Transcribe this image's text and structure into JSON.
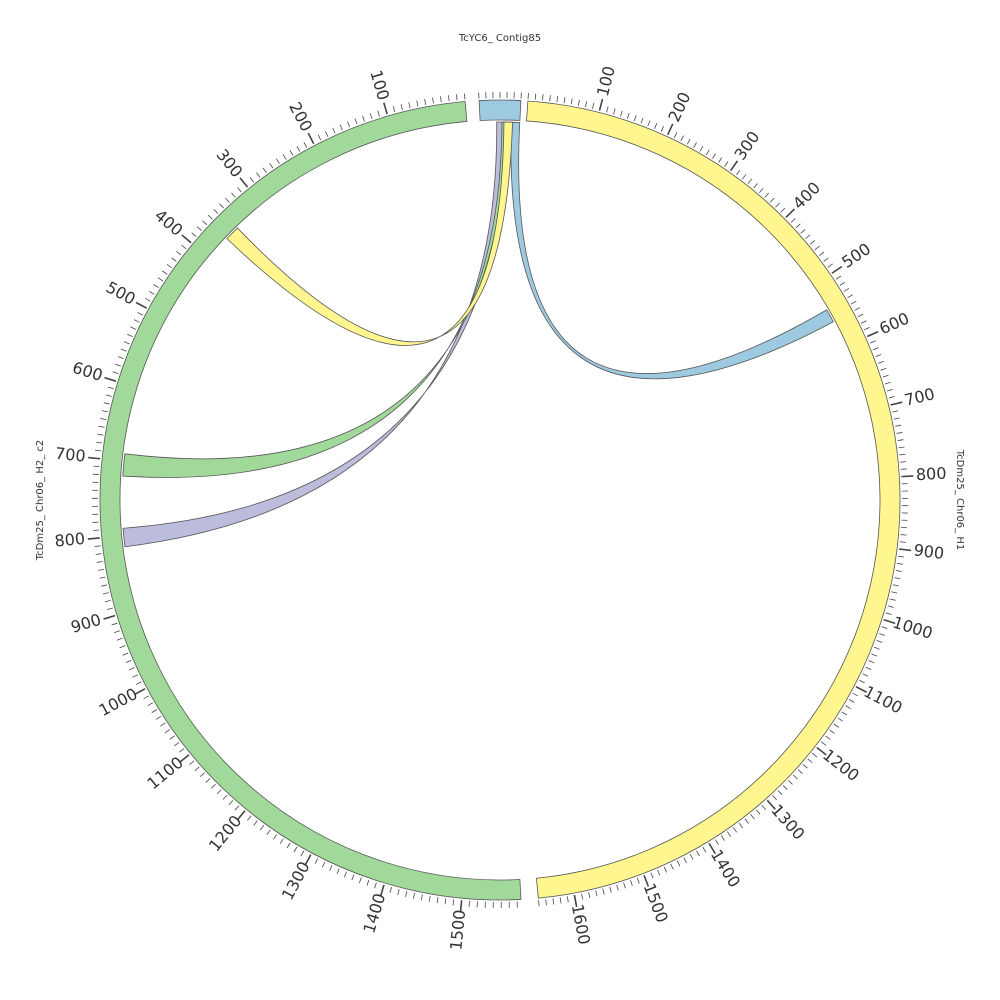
{
  "chart_data": {
    "type": "chord",
    "segments": [
      {
        "id": "contig85",
        "label": "TcYC6_ Contig85",
        "color": "#9ecae1",
        "tick_labels": []
      },
      {
        "id": "h1",
        "label": "TcDm25_ Chr06_ H1",
        "color": "#fff68f",
        "tick_labels": [
          "100",
          "200",
          "300",
          "400",
          "500",
          "600",
          "700",
          "800",
          "900",
          "1000",
          "1100",
          "1200",
          "1300",
          "1400",
          "1500",
          "1600"
        ]
      },
      {
        "id": "h2",
        "label": "TcDm25_ Chr06_ H2_ c2",
        "color": "#a1d99b",
        "tick_labels": [
          "100",
          "200",
          "300",
          "400",
          "500",
          "600",
          "700",
          "800",
          "900",
          "1000",
          "1100",
          "1200",
          "1300",
          "1400",
          "1500"
        ]
      }
    ],
    "links": [
      {
        "from": "contig85",
        "to": "h1",
        "to_start": 540,
        "to_end": 560,
        "color": "#9ecae1"
      },
      {
        "from": "contig85",
        "to": "h2",
        "to_start": 790,
        "to_end": 815,
        "color": "#bcbddc"
      },
      {
        "from": "contig85",
        "to": "h2",
        "to_start": 690,
        "to_end": 720,
        "color": "#a1d99b"
      },
      {
        "from": "contig85",
        "to": "h2",
        "to_start": 345,
        "to_end": 365,
        "color": "#fff68f"
      }
    ]
  }
}
